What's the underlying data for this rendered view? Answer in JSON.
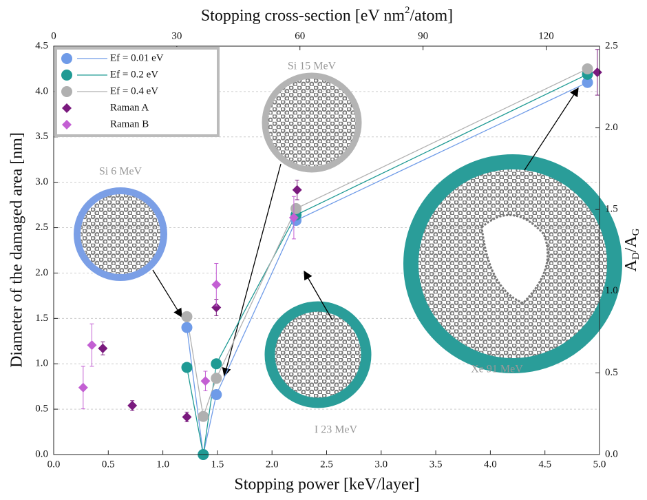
{
  "chart_data": {
    "type": "scatter-line",
    "xlabel": "Stopping power [keV/layer]",
    "ylabel": "Diameter of the damaged area [nm]",
    "x2label_parts": [
      "Stopping cross-section [eV nm",
      "2",
      "/atom]"
    ],
    "y2label_parts": [
      "A",
      "D",
      "/A",
      "G"
    ],
    "xlim": [
      0,
      5
    ],
    "ylim": [
      0,
      4.5
    ],
    "x2lim": [
      0,
      133
    ],
    "y2lim": [
      0,
      2.5
    ],
    "xticks": [
      {
        "value": 0,
        "label": "0.0"
      },
      {
        "value": 0.5,
        "label": "0.5"
      },
      {
        "value": 1,
        "label": "1.0"
      },
      {
        "value": 1.5,
        "label": "1.5"
      },
      {
        "value": 2,
        "label": "2.0"
      },
      {
        "value": 2.5,
        "label": "2.5"
      },
      {
        "value": 3,
        "label": "3.0"
      },
      {
        "value": 3.5,
        "label": "3.5"
      },
      {
        "value": 4,
        "label": "4.0"
      },
      {
        "value": 4.5,
        "label": "4.5"
      },
      {
        "value": 5,
        "label": "5.0"
      }
    ],
    "yticks": [
      {
        "value": 0,
        "label": "0.0"
      },
      {
        "value": 0.5,
        "label": "0.5"
      },
      {
        "value": 1,
        "label": "1.0"
      },
      {
        "value": 1.5,
        "label": "1.5"
      },
      {
        "value": 2,
        "label": "2.0"
      },
      {
        "value": 2.5,
        "label": "2.5"
      },
      {
        "value": 3,
        "label": "3.0"
      },
      {
        "value": 3.5,
        "label": "3.5"
      },
      {
        "value": 4,
        "label": "4.0"
      },
      {
        "value": 4.5,
        "label": "4.5"
      }
    ],
    "x2ticks": [
      0,
      30,
      60,
      90,
      120
    ],
    "y2ticks": [
      {
        "value": 0,
        "label": "0.0"
      },
      {
        "value": 0.5,
        "label": "0.5"
      },
      {
        "value": 1,
        "label": "1.0"
      },
      {
        "value": 1.5,
        "label": "1.5"
      },
      {
        "value": 2,
        "label": "2.0"
      },
      {
        "value": 2.5,
        "label": "2.5"
      }
    ],
    "grid": true,
    "series": [
      {
        "name": "Ef = 0.01 eV",
        "color": "#6f9be8",
        "kind": "line",
        "x": [
          1.22,
          1.37,
          1.49,
          2.22,
          4.89
        ],
        "values": [
          1.4,
          0.0,
          0.66,
          2.58,
          4.1
        ]
      },
      {
        "name": "Ef = 0.2 eV",
        "color": "#1f9a94",
        "kind": "line",
        "x": [
          1.22,
          1.37,
          1.49,
          2.22,
          4.89
        ],
        "values": [
          0.96,
          0.0,
          1.0,
          2.64,
          4.19
        ]
      },
      {
        "name": "Ef = 0.4 eV",
        "color": "#b0b0b0",
        "kind": "line",
        "x": [
          1.22,
          1.37,
          1.49,
          2.22,
          4.89
        ],
        "values": [
          1.52,
          0.42,
          0.84,
          2.71,
          4.25
        ]
      },
      {
        "name": "Raman A",
        "color": "#7a1a7e",
        "kind": "diamond",
        "axis": "y2",
        "x": [
          0.45,
          0.72,
          1.22,
          1.49,
          2.23,
          4.98
        ],
        "values": [
          0.65,
          0.3,
          0.23,
          0.9,
          1.62,
          2.34
        ],
        "errors": [
          0.04,
          0.03,
          0.03,
          0.05,
          0.06,
          0.14
        ]
      },
      {
        "name": "Raman B",
        "color": "#c35fd3",
        "kind": "diamond",
        "axis": "y2",
        "x": [
          0.27,
          0.35,
          1.39,
          1.49,
          2.2
        ],
        "values": [
          0.41,
          0.67,
          0.45,
          1.04,
          1.45
        ],
        "errors": [
          0.13,
          0.13,
          0.06,
          0.13,
          0.13
        ]
      }
    ],
    "annotations": [
      "Si 6 MeV",
      "Si 15 MeV",
      "I 23 MeV",
      "Xe 91 MeV"
    ]
  }
}
